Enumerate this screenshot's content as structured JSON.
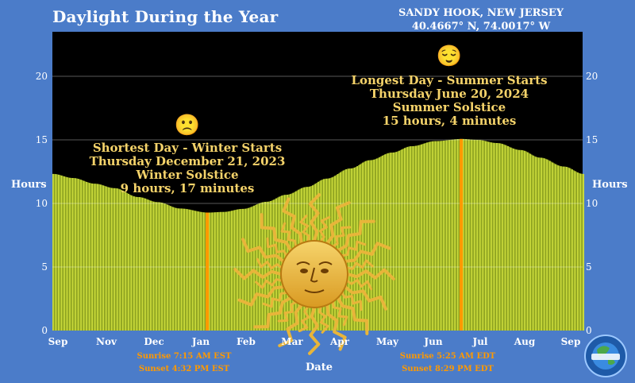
{
  "header": {
    "title": "Daylight During the Year",
    "location_name": "SANDY HOOK, NEW JERSEY",
    "coordinates": "40.4667° N, 74.0017° W"
  },
  "chart_data": {
    "type": "bar",
    "title": "Daylight During the Year",
    "xlabel": "Date",
    "ylabel_left": "Hours",
    "ylabel_right": "Hours",
    "ylim": [
      0,
      23.5
    ],
    "y_ticks": [
      0,
      5,
      10,
      15,
      20
    ],
    "x_ticks": [
      "Sep",
      "Nov",
      "Dec",
      "Jan",
      "Feb",
      "Mar",
      "Apr",
      "May",
      "Jun",
      "Jul",
      "Aug",
      "Sep"
    ],
    "series": [
      {
        "points": [
          [
            "2023-09-01",
            12.32
          ],
          [
            "2023-09-15",
            12.0
          ],
          [
            "2023-10-01",
            11.55
          ],
          [
            "2023-10-15",
            11.2
          ],
          [
            "2023-11-01",
            10.5
          ],
          [
            "2023-11-15",
            10.1
          ],
          [
            "2023-12-01",
            9.6
          ],
          [
            "2023-12-21",
            9.28
          ],
          [
            "2024-01-01",
            9.33
          ],
          [
            "2024-01-15",
            9.57
          ],
          [
            "2024-02-01",
            10.13
          ],
          [
            "2024-02-15",
            10.68
          ],
          [
            "2024-03-01",
            11.3
          ],
          [
            "2024-03-15",
            11.95
          ],
          [
            "2024-04-01",
            12.75
          ],
          [
            "2024-04-15",
            13.4
          ],
          [
            "2024-05-01",
            14.0
          ],
          [
            "2024-05-15",
            14.5
          ],
          [
            "2024-06-01",
            14.9
          ],
          [
            "2024-06-20",
            15.07
          ],
          [
            "2024-07-01",
            15.0
          ],
          [
            "2024-07-15",
            14.75
          ],
          [
            "2024-08-01",
            14.2
          ],
          [
            "2024-08-15",
            13.6
          ],
          [
            "2024-09-01",
            12.9
          ],
          [
            "2024-09-15",
            12.32
          ]
        ]
      }
    ],
    "annotations": {
      "shortest": {
        "date": "2023-12-21",
        "hours": 9.28,
        "emoji": "🙁",
        "lines": [
          "Shortest Day - Winter Starts",
          "Thursday December 21, 2023",
          "Winter Solstice",
          "9 hours, 17 minutes"
        ],
        "sunrise": "Sunrise 7:15 AM EST",
        "sunset": "Sunset 4:32 PM EST"
      },
      "longest": {
        "date": "2024-06-20",
        "hours": 15.07,
        "emoji": "😌",
        "lines": [
          "Longest Day - Summer Starts",
          "Thursday June 20, 2024",
          "Summer Solstice",
          "15 hours, 4 minutes"
        ],
        "sunrise": "Sunrise 5:25 AM EDT",
        "sunset": "Sunset 8:29 PM EDT"
      }
    },
    "colors": {
      "background": "#4b7cc9",
      "plot_background": "#000000",
      "bar_fill": "#8ea321",
      "bar_stripe": "#c8d93a",
      "solstice_marker": "#ff9900",
      "annotation_text": "#f5d36a",
      "sun": "#e8b53a",
      "axis_text": "#ffffff"
    },
    "grid": true
  }
}
